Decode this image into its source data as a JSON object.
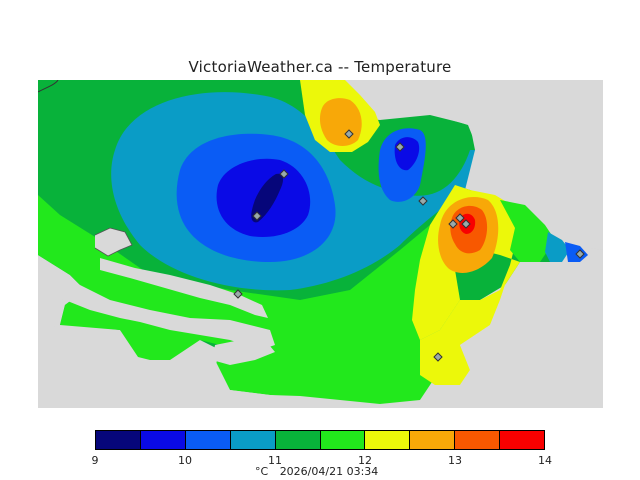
{
  "title": "VictoriaWeather.ca -- Temperature",
  "legend": {
    "colors": [
      "#06067a",
      "#0a0ae6",
      "#0a5cf5",
      "#0a9cc6",
      "#08b23a",
      "#22e81c",
      "#ecf80a",
      "#f8a808",
      "#f85800",
      "#f80000"
    ],
    "ticks": [
      "9",
      "10",
      "11",
      "12",
      "13",
      "14"
    ],
    "tick_values": [
      9,
      10,
      11,
      12,
      13,
      14
    ]
  },
  "footer": {
    "unit": "°C",
    "timestamp": "2026/04/21 03:34"
  },
  "map": {
    "land_color": "#d9d9d9",
    "station_marker": "diamond-icon"
  }
}
